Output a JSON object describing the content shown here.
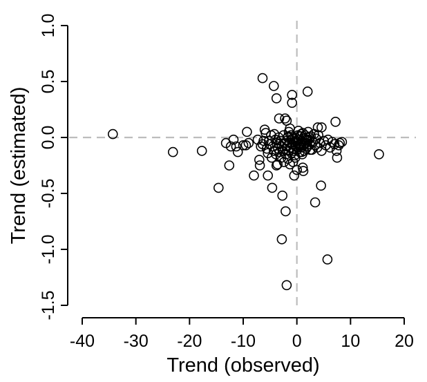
{
  "chart_data": {
    "type": "scatter",
    "title": "",
    "xlabel": "Trend (observed)",
    "ylabel": "Trend (estimated)",
    "xlim": [
      -40,
      20
    ],
    "ylim": [
      -1.5,
      1.0
    ],
    "xticks": [
      -40,
      -30,
      -20,
      -10,
      0,
      10,
      20
    ],
    "yticks": [
      -1.5,
      -1.0,
      -0.5,
      0.0,
      0.5,
      1.0
    ],
    "xtick_labels": [
      "-40",
      "-30",
      "-20",
      "-10",
      "0",
      "10",
      "20"
    ],
    "ytick_labels": [
      "-1.5",
      "-1.0",
      "-0.5",
      "0.0",
      "0.5",
      "1.0"
    ],
    "reference_lines": {
      "x": 0,
      "y": 0,
      "style": "dashed",
      "color": "#bdbdbd"
    },
    "grid": false,
    "marker": "open-circle",
    "points": [
      [
        -34.3,
        0.03
      ],
      [
        -23.1,
        -0.13
      ],
      [
        -17.7,
        -0.12
      ],
      [
        -14.6,
        -0.45
      ],
      [
        -13.2,
        -0.05
      ],
      [
        -12.6,
        -0.25
      ],
      [
        -12.3,
        -0.08
      ],
      [
        -11.8,
        -0.02
      ],
      [
        -11.3,
        -0.08
      ],
      [
        -11.0,
        -0.13
      ],
      [
        -10.0,
        -0.07
      ],
      [
        -9.5,
        -0.07
      ],
      [
        -9.3,
        0.05
      ],
      [
        -9.0,
        -0.05
      ],
      [
        -8.0,
        -0.34
      ],
      [
        -7.3,
        -0.02
      ],
      [
        -7.0,
        -0.2
      ],
      [
        -6.9,
        -0.25
      ],
      [
        -6.7,
        -0.08
      ],
      [
        -6.4,
        -0.06
      ],
      [
        -6.2,
        -0.03
      ],
      [
        -6.0,
        0.07
      ],
      [
        -5.8,
        0.04
      ],
      [
        -5.6,
        -0.1
      ],
      [
        -5.4,
        -0.14
      ],
      [
        -5.2,
        -0.03
      ],
      [
        -5.0,
        -0.06
      ],
      [
        -4.8,
        0.02
      ],
      [
        -4.7,
        -0.18
      ],
      [
        -4.6,
        -0.45
      ],
      [
        -4.5,
        -0.08
      ],
      [
        -4.3,
        -0.12
      ],
      [
        -4.2,
        0.03
      ],
      [
        -4.0,
        -0.02
      ],
      [
        -3.9,
        -0.15
      ],
      [
        -3.8,
        -0.05
      ],
      [
        -3.6,
        -0.24
      ],
      [
        -3.5,
        -0.1
      ],
      [
        -3.4,
        0.0
      ],
      [
        -3.3,
        -0.06
      ],
      [
        -3.2,
        -0.13
      ],
      [
        -3.0,
        -0.03
      ],
      [
        -2.9,
        -0.18
      ],
      [
        -2.8,
        -0.08
      ],
      [
        -2.7,
        -0.52
      ],
      [
        -2.6,
        -0.12
      ],
      [
        -2.5,
        0.02
      ],
      [
        -2.4,
        -0.22
      ],
      [
        -2.3,
        -0.05
      ],
      [
        -2.2,
        -0.1
      ],
      [
        -2.1,
        -0.66
      ],
      [
        -2.0,
        -0.15
      ],
      [
        -1.9,
        -0.03
      ],
      [
        -1.8,
        -0.08
      ],
      [
        -1.7,
        -0.19
      ],
      [
        -1.6,
        0.01
      ],
      [
        -1.5,
        -0.12
      ],
      [
        -1.4,
        -0.05
      ],
      [
        -1.3,
        -0.24
      ],
      [
        -1.2,
        -0.09
      ],
      [
        -1.1,
        0.02
      ],
      [
        -1.0,
        -0.14
      ],
      [
        -0.9,
        -0.06
      ],
      [
        -0.8,
        -0.01
      ],
      [
        -0.7,
        -0.22
      ],
      [
        -0.6,
        -0.1
      ],
      [
        -0.5,
        -0.04
      ],
      [
        -0.4,
        -0.16
      ],
      [
        -0.3,
        0.0
      ],
      [
        -0.2,
        -0.08
      ],
      [
        -0.1,
        -0.03
      ],
      [
        0.0,
        -0.11
      ],
      [
        0.1,
        -0.05
      ],
      [
        0.2,
        0.02
      ],
      [
        0.3,
        -0.07
      ],
      [
        0.4,
        -0.02
      ],
      [
        0.5,
        -0.13
      ],
      [
        0.6,
        -0.06
      ],
      [
        0.7,
        0.01
      ],
      [
        0.8,
        -0.09
      ],
      [
        0.9,
        -0.03
      ],
      [
        1.0,
        -0.15
      ],
      [
        1.1,
        0.04
      ],
      [
        1.2,
        -0.07
      ],
      [
        1.3,
        -0.01
      ],
      [
        1.4,
        -0.12
      ],
      [
        1.5,
        0.02
      ],
      [
        1.6,
        -0.05
      ],
      [
        1.7,
        -0.1
      ],
      [
        1.8,
        0.0
      ],
      [
        1.9,
        -0.03
      ],
      [
        2.0,
        -0.08
      ],
      [
        2.1,
        0.05
      ],
      [
        2.2,
        -0.02
      ],
      [
        2.4,
        -0.06
      ],
      [
        2.6,
        0.01
      ],
      [
        2.8,
        -0.11
      ],
      [
        3.0,
        -0.04
      ],
      [
        3.2,
        0.03
      ],
      [
        3.4,
        -0.07
      ],
      [
        3.6,
        -0.01
      ],
      [
        3.8,
        -0.09
      ],
      [
        4.0,
        0.02
      ],
      [
        4.3,
        -0.05
      ],
      [
        4.6,
        -0.12
      ],
      [
        5.0,
        -0.03
      ],
      [
        5.4,
        -0.07
      ],
      [
        5.8,
        -0.02
      ],
      [
        6.2,
        -0.09
      ],
      [
        6.6,
        -0.04
      ],
      [
        7.0,
        -0.06
      ],
      [
        7.4,
        -0.12
      ],
      [
        7.8,
        -0.07
      ],
      [
        8.4,
        -0.04
      ],
      [
        -3.3,
        0.17
      ],
      [
        -2.2,
        0.17
      ],
      [
        -1.9,
        0.15
      ],
      [
        -1.7,
        0.0
      ],
      [
        -1.5,
        0.05
      ],
      [
        -1.3,
        0.08
      ],
      [
        0.3,
        0.06
      ],
      [
        0.8,
        0.03
      ],
      [
        2.3,
        0.0
      ],
      [
        3.9,
        0.09
      ],
      [
        4.6,
        0.09
      ],
      [
        7.2,
        0.14
      ],
      [
        -6.4,
        0.53
      ],
      [
        -4.3,
        0.46
      ],
      [
        -3.8,
        0.35
      ],
      [
        -0.9,
        0.38
      ],
      [
        -0.9,
        0.31
      ],
      [
        2.0,
        0.41
      ],
      [
        15.3,
        -0.15
      ],
      [
        0.0,
        -0.29
      ],
      [
        -0.5,
        -0.34
      ],
      [
        1.1,
        -0.27
      ],
      [
        1.2,
        -0.3
      ],
      [
        4.5,
        -0.43
      ],
      [
        3.4,
        -0.58
      ],
      [
        7.5,
        -0.18
      ],
      [
        8.0,
        -0.05
      ],
      [
        -3.8,
        -0.25
      ],
      [
        -5.4,
        -0.34
      ],
      [
        -2.8,
        -0.91
      ],
      [
        5.7,
        -1.09
      ],
      [
        -1.9,
        -1.32
      ],
      [
        0.2,
        -0.02
      ],
      [
        0.5,
        -0.08
      ],
      [
        0.9,
        -0.13
      ],
      [
        1.3,
        -0.06
      ],
      [
        1.7,
        -0.02
      ],
      [
        2.5,
        -0.11
      ],
      [
        -0.3,
        -0.18
      ],
      [
        -0.7,
        -0.12
      ]
    ]
  }
}
